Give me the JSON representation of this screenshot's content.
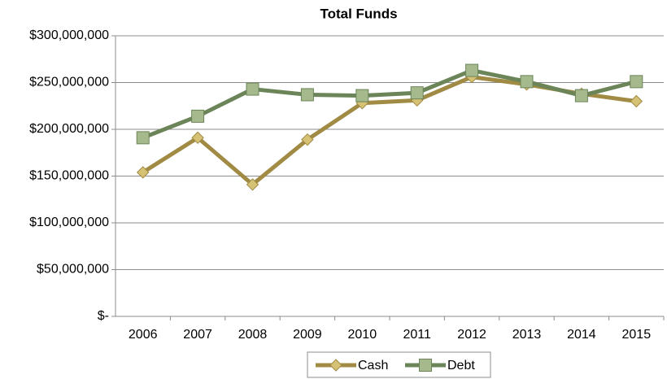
{
  "chart_data": {
    "type": "line",
    "title": "Total Funds",
    "categories": [
      "2006",
      "2007",
      "2008",
      "2009",
      "2010",
      "2011",
      "2012",
      "2013",
      "2014",
      "2015"
    ],
    "series": [
      {
        "name": "Cash",
        "color": "#a08a44",
        "marker_color": "#d6c274",
        "marker": "diamond",
        "values": [
          154000000,
          191000000,
          141000000,
          189000000,
          228000000,
          231000000,
          256000000,
          248000000,
          238000000,
          230000000
        ]
      },
      {
        "name": "Debt",
        "color": "#6b8559",
        "marker_color": "#a6b98d",
        "marker": "square",
        "values": [
          191000000,
          214000000,
          243000000,
          237000000,
          236000000,
          239000000,
          263000000,
          251000000,
          236000000,
          251000000
        ]
      }
    ],
    "ylim": [
      0,
      300000000
    ],
    "yticks": [
      {
        "value": 0,
        "label": "$-"
      },
      {
        "value": 50000000,
        "label": "$50,000,000"
      },
      {
        "value": 100000000,
        "label": "$100,000,000"
      },
      {
        "value": 150000000,
        "label": "$150,000,000"
      },
      {
        "value": 200000000,
        "label": "$200,000,000"
      },
      {
        "value": 250000000,
        "label": "$250,000,000"
      },
      {
        "value": 300000000,
        "label": "$300,000,000"
      }
    ],
    "grid": true,
    "legend": "bottom"
  }
}
